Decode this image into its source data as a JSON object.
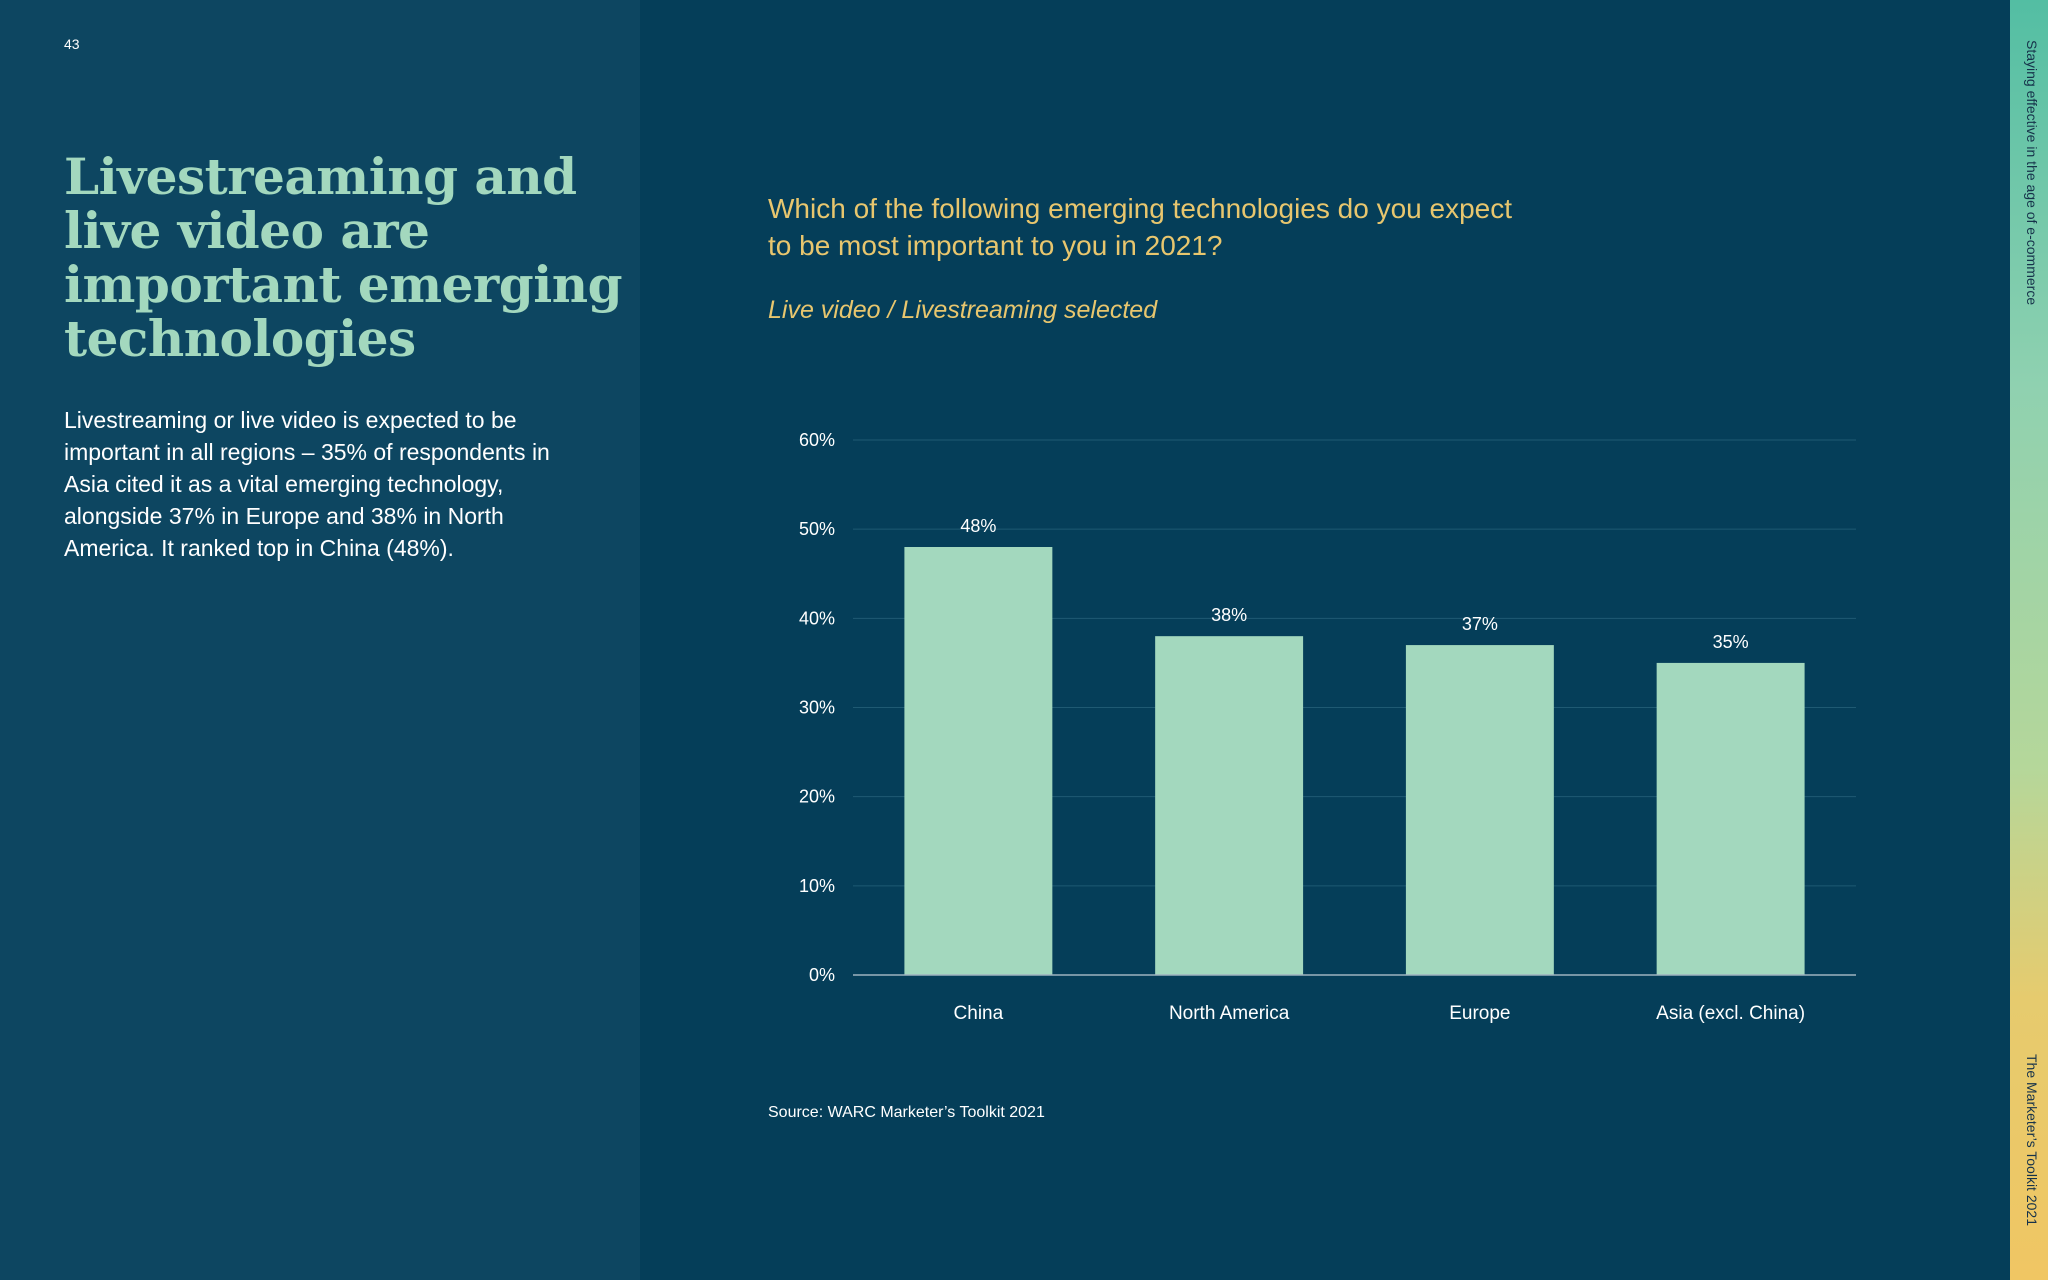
{
  "page": {
    "number": "43",
    "headline": "Livestreaming and live video are important emerging technologies",
    "body": "Livestreaming or live video is expected to be important in all regions – 35% of respondents in Asia cited it as a vital emerging technology, alongside 37% in Europe and 38% in North America. It ranked top in China (48%).",
    "question": "Which of the following emerging technologies do you expect to be most important to you in 2021?",
    "subtitle": "Live video / Livestreaming selected",
    "source": "Source: WARC Marketer’s Toolkit 2021",
    "side_top": "Staying effective in the age of e-commerce",
    "side_bottom": "The Marketer’s Toolkit 2021"
  },
  "colors": {
    "background": "#053e59",
    "left_panel": "#0d4661",
    "headline": "#a3d8be",
    "accent_yellow": "#e8c66e",
    "bar": "#a3d8be"
  },
  "chart_data": {
    "type": "bar",
    "title": "Which of the following emerging technologies do you expect to be most important to you in 2021?",
    "subtitle": "Live video / Livestreaming selected",
    "categories": [
      "China",
      "North America",
      "Europe",
      "Asia (excl. China)"
    ],
    "values": [
      48,
      38,
      37,
      35
    ],
    "value_labels": [
      "48%",
      "38%",
      "37%",
      "35%"
    ],
    "ylim": [
      0,
      60
    ],
    "yticks": [
      0,
      10,
      20,
      30,
      40,
      50,
      60
    ],
    "ytick_labels": [
      "0%",
      "10%",
      "20%",
      "30%",
      "40%",
      "50%",
      "60%"
    ],
    "grid": true,
    "legend": "none"
  }
}
